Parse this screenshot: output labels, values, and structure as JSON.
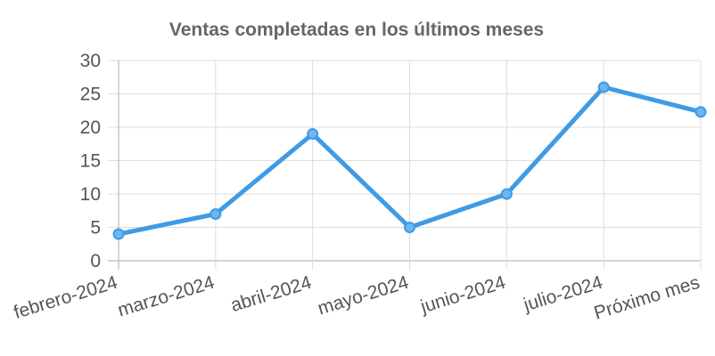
{
  "chart_data": {
    "type": "line",
    "title": "Ventas completadas en los últimos meses",
    "xlabel": "",
    "ylabel": "",
    "categories": [
      "febrero-2024",
      "marzo-2024",
      "abril-2024",
      "mayo-2024",
      "junio-2024",
      "julio-2024",
      "Próximo mes"
    ],
    "series": [
      {
        "values": [
          4,
          7,
          19,
          5,
          10,
          26,
          22.3
        ]
      }
    ],
    "ylim": [
      0,
      30
    ],
    "yticks": [
      0,
      5,
      10,
      15,
      20,
      25,
      30
    ],
    "grid": true,
    "legend": "none",
    "colors": {
      "line": "#3e9be6",
      "point_fill": "#6fb5ee",
      "grid": "#dddddd",
      "title": "#666666",
      "tick": "#555555"
    }
  }
}
